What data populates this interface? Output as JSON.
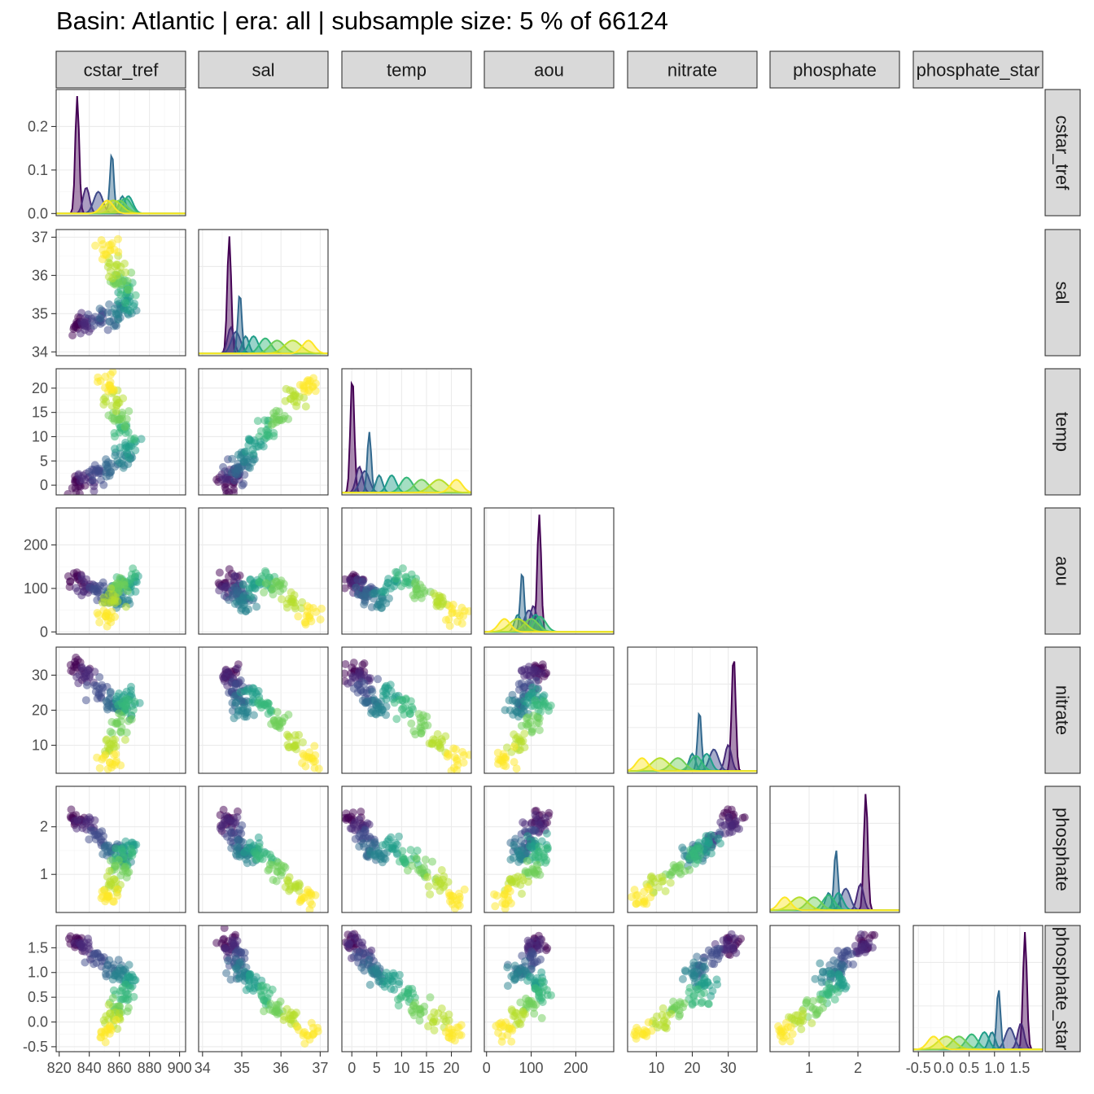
{
  "title": "Basin: Atlantic | era: all | subsample size: 5 % of 66124",
  "palette": [
    "#440154",
    "#482878",
    "#3e4989",
    "#31688e",
    "#26828e",
    "#1f9e89",
    "#35b779",
    "#6ece58",
    "#b5de2b",
    "#fde725"
  ],
  "chart_data": {
    "type": "scatter",
    "subtype": "pairs-matrix",
    "variables": [
      "cstar_tref",
      "sal",
      "temp",
      "aou",
      "nitrate",
      "phosphate",
      "phosphate_star"
    ],
    "axes": {
      "cstar_tref": {
        "range": [
          818,
          904
        ],
        "ticks": [
          820,
          840,
          860,
          880,
          900
        ],
        "tick_labels": [
          "820",
          "840",
          "860",
          "880",
          "900"
        ]
      },
      "sal": {
        "range": [
          33.9,
          37.2
        ],
        "ticks": [
          34,
          35,
          36,
          37
        ],
        "tick_labels": [
          "34",
          "35",
          "36",
          "37"
        ]
      },
      "temp": {
        "range": [
          -2,
          24
        ],
        "ticks": [
          0,
          5,
          10,
          15,
          20
        ],
        "tick_labels": [
          "0",
          "5",
          "10",
          "15",
          "20"
        ]
      },
      "aou": {
        "range": [
          -5,
          285
        ],
        "ticks": [
          0,
          100,
          200
        ],
        "tick_labels": [
          "0",
          "100",
          "200"
        ]
      },
      "nitrate": {
        "range": [
          2,
          38
        ],
        "ticks": [
          10,
          20,
          30
        ],
        "tick_labels": [
          "10",
          "20",
          "30"
        ]
      },
      "phosphate": {
        "range": [
          0.2,
          2.85
        ],
        "ticks": [
          1,
          2
        ],
        "tick_labels": [
          "1",
          "2"
        ]
      },
      "phosphate_star": {
        "range": [
          -0.6,
          1.95
        ],
        "ticks": [
          -0.5,
          0.0,
          0.5,
          1.0,
          1.5
        ],
        "tick_labels": [
          "-0.5",
          "0.0",
          "0.5",
          "1.0",
          "1.5"
        ]
      }
    },
    "density_axis": {
      "range": [
        -0.005,
        0.285
      ],
      "ticks": [
        0.0,
        0.1,
        0.2
      ],
      "tick_labels": [
        "0.0",
        "0.1",
        "0.2"
      ]
    },
    "groups": [
      {
        "color_index": 0,
        "cstar_tref": 832,
        "sal": 34.68,
        "temp": 0.1,
        "aou": 118,
        "nitrate": 31.5,
        "phosphate": 2.16,
        "phosphate_star": 1.6,
        "density_peak": 0.27
      },
      {
        "color_index": 1,
        "cstar_tref": 838,
        "sal": 34.72,
        "temp": 1.5,
        "aou": 105,
        "nitrate": 30.0,
        "phosphate": 2.05,
        "phosphate_star": 1.52,
        "density_peak": 0.06
      },
      {
        "color_index": 2,
        "cstar_tref": 846,
        "sal": 34.85,
        "temp": 2.6,
        "aou": 95,
        "nitrate": 26.0,
        "phosphate": 1.75,
        "phosphate_star": 1.3,
        "density_peak": 0.05
      },
      {
        "color_index": 3,
        "cstar_tref": 855,
        "sal": 34.95,
        "temp": 3.5,
        "aou": 80,
        "nitrate": 22.0,
        "phosphate": 1.55,
        "phosphate_star": 1.08,
        "density_peak": 0.14
      },
      {
        "color_index": 4,
        "cstar_tref": 862,
        "sal": 35.1,
        "temp": 5.5,
        "aou": 70,
        "nitrate": 20.0,
        "phosphate": 1.4,
        "phosphate_star": 0.95,
        "density_peak": 0.04
      },
      {
        "color_index": 5,
        "cstar_tref": 866,
        "sal": 35.3,
        "temp": 8.0,
        "aou": 110,
        "nitrate": 24.0,
        "phosphate": 1.6,
        "phosphate_star": 0.8,
        "density_peak": 0.04
      },
      {
        "color_index": 6,
        "cstar_tref": 864,
        "sal": 35.6,
        "temp": 11.0,
        "aou": 120,
        "nitrate": 21.0,
        "phosphate": 1.4,
        "phosphate_star": 0.55,
        "density_peak": 0.035
      },
      {
        "color_index": 7,
        "cstar_tref": 860,
        "sal": 35.9,
        "temp": 14.0,
        "aou": 100,
        "nitrate": 16.0,
        "phosphate": 1.1,
        "phosphate_star": 0.3,
        "density_peak": 0.03
      },
      {
        "color_index": 8,
        "cstar_tref": 856,
        "sal": 36.3,
        "temp": 17.5,
        "aou": 70,
        "nitrate": 11.0,
        "phosphate": 0.8,
        "phosphate_star": 0.05,
        "density_peak": 0.03
      },
      {
        "color_index": 9,
        "cstar_tref": 852,
        "sal": 36.7,
        "temp": 21.0,
        "aou": 40,
        "nitrate": 6.0,
        "phosphate": 0.5,
        "phosphate_star": -0.2,
        "density_peak": 0.03
      }
    ],
    "grid": true,
    "legend": "none"
  }
}
